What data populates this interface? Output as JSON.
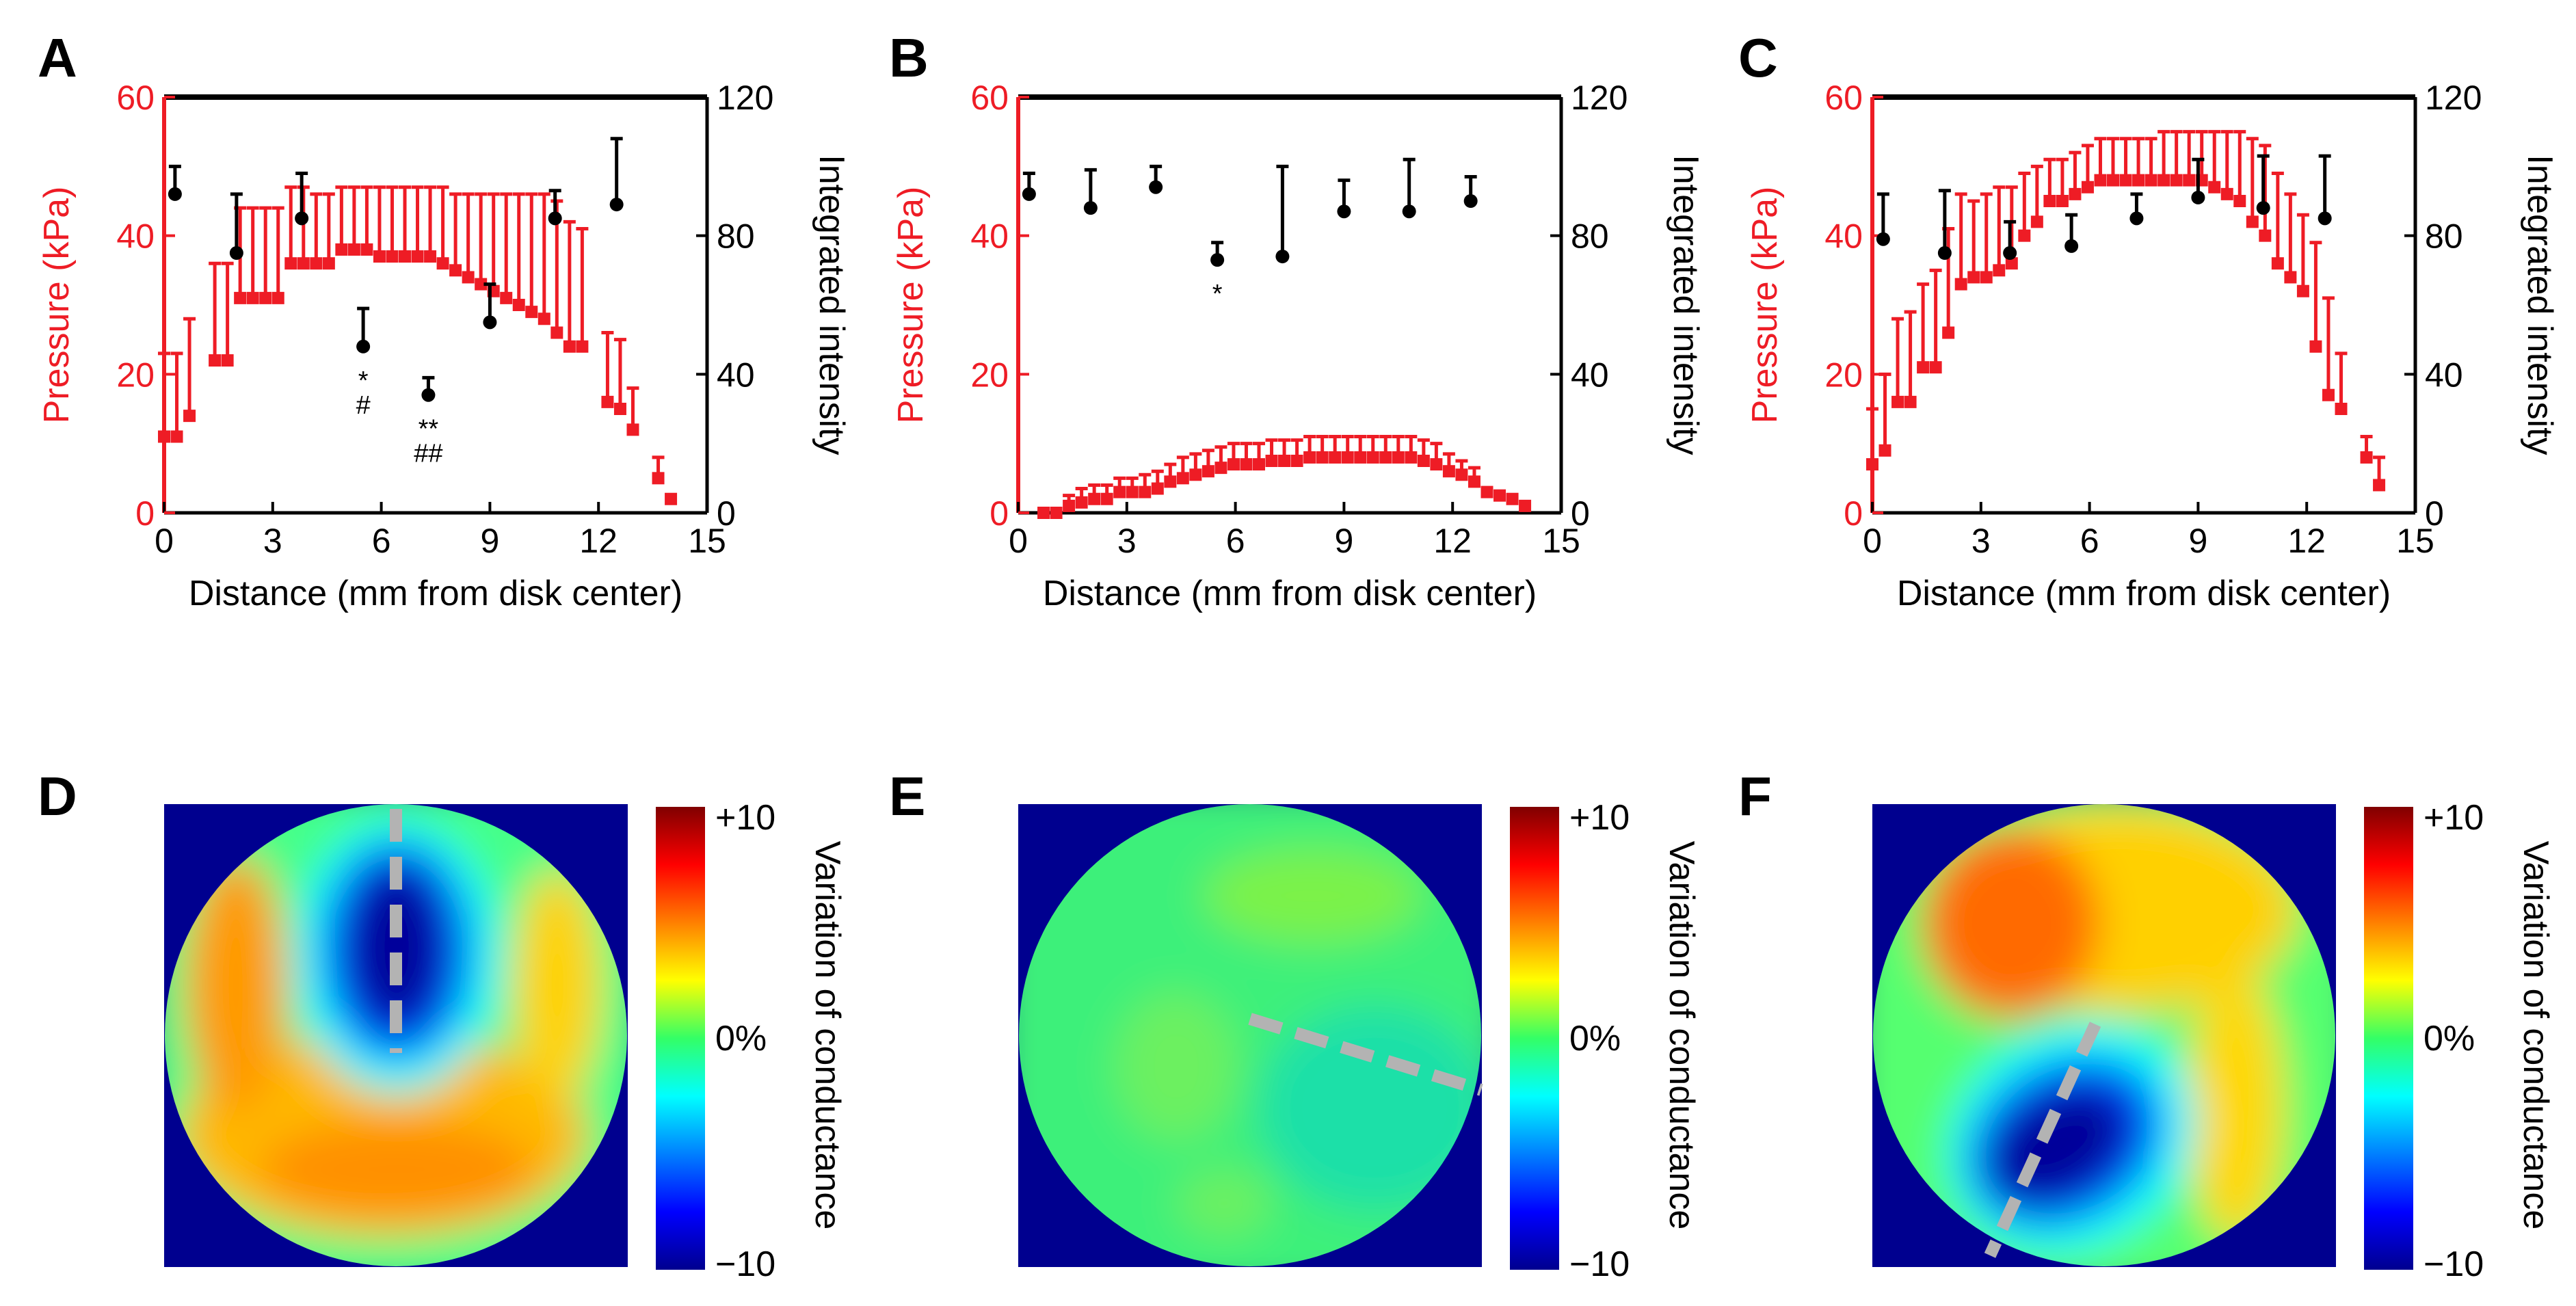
{
  "colors": {
    "pressure": "#ee1c25",
    "intensity": "#000000",
    "dash": "#b3b3b3",
    "background": "#00008f"
  },
  "chart_data": [
    {
      "panel": "A",
      "type": "line",
      "xlabel": "Distance (mm from disk center)",
      "ylabel": "Pressure (kPa)",
      "y2label": "Integrated intensity",
      "xlim": [
        0,
        15
      ],
      "ylim": [
        0,
        60
      ],
      "y2lim": [
        0,
        120
      ],
      "xticks": [
        "0",
        "3",
        "6",
        "9",
        "12",
        "15"
      ],
      "yticks": [
        "0",
        "20",
        "40",
        "60"
      ],
      "y2ticks": [
        "0",
        "40",
        "80",
        "120"
      ],
      "series": [
        {
          "name": "Pressure (kPa)",
          "axis": "left",
          "color": "#ee1c25",
          "marker": "square",
          "x": [
            0,
            0.35,
            0.7,
            1.4,
            1.75,
            2.1,
            2.45,
            2.8,
            3.15,
            3.5,
            3.85,
            4.2,
            4.55,
            4.9,
            5.25,
            5.6,
            5.95,
            6.3,
            6.65,
            7.0,
            7.35,
            7.7,
            8.05,
            8.4,
            8.75,
            9.1,
            9.45,
            9.8,
            10.15,
            10.5,
            10.85,
            11.2,
            11.55,
            12.25,
            12.6,
            12.95,
            13.65,
            14.0
          ],
          "y": [
            11,
            11,
            14,
            22,
            22,
            31,
            31,
            31,
            31,
            36,
            36,
            36,
            36,
            38,
            38,
            38,
            37,
            37,
            37,
            37,
            37,
            36,
            35,
            34,
            33,
            32,
            31,
            30,
            29,
            28,
            26,
            24,
            24,
            16,
            15,
            12,
            5,
            2
          ],
          "err": [
            12,
            12,
            14,
            14,
            14,
            13,
            13,
            13,
            13,
            11,
            11,
            10,
            10,
            9,
            9,
            9,
            10,
            10,
            10,
            10,
            10,
            11,
            11,
            12,
            13,
            14,
            15,
            16,
            17,
            18,
            19,
            18,
            17,
            10,
            10,
            6,
            3,
            0
          ]
        },
        {
          "name": "Integrated intensity",
          "axis": "right",
          "color": "#000000",
          "marker": "circle",
          "x": [
            0.3,
            2.0,
            3.8,
            5.5,
            7.3,
            9.0,
            10.8,
            12.5
          ],
          "y": [
            92,
            75,
            85,
            48,
            34,
            55,
            85,
            89
          ],
          "err": [
            8,
            17,
            13,
            11,
            5,
            11,
            8,
            19
          ]
        }
      ],
      "annotations": [
        {
          "x": 5.5,
          "line1": "*",
          "line2": "#"
        },
        {
          "x": 7.3,
          "line1": "**",
          "line2": "##"
        }
      ]
    },
    {
      "panel": "B",
      "type": "line",
      "xlabel": "Distance (mm from disk center)",
      "ylabel": "Pressure (kPa)",
      "y2label": "Integrated intensity",
      "xlim": [
        0,
        15
      ],
      "ylim": [
        0,
        60
      ],
      "y2lim": [
        0,
        120
      ],
      "xticks": [
        "0",
        "3",
        "6",
        "9",
        "12",
        "15"
      ],
      "yticks": [
        "0",
        "20",
        "40",
        "60"
      ],
      "y2ticks": [
        "0",
        "40",
        "80",
        "120"
      ],
      "series": [
        {
          "name": "Pressure (kPa)",
          "axis": "left",
          "color": "#ee1c25",
          "marker": "square",
          "x": [
            0.7,
            1.05,
            1.4,
            1.75,
            2.1,
            2.45,
            2.8,
            3.15,
            3.5,
            3.85,
            4.2,
            4.55,
            4.9,
            5.25,
            5.6,
            5.95,
            6.3,
            6.65,
            7.0,
            7.35,
            7.7,
            8.05,
            8.4,
            8.75,
            9.1,
            9.45,
            9.8,
            10.15,
            10.5,
            10.85,
            11.2,
            11.55,
            11.9,
            12.25,
            12.6,
            12.95,
            13.3,
            13.65,
            14.0
          ],
          "y": [
            0,
            0,
            1,
            1.5,
            2,
            2,
            3,
            3,
            3,
            3.5,
            4.5,
            5,
            5.5,
            6,
            6.5,
            7,
            7,
            7,
            7.5,
            7.5,
            7.5,
            8,
            8,
            8,
            8,
            8,
            8,
            8,
            8,
            8,
            7.5,
            7,
            6,
            5.5,
            4.5,
            3,
            2.5,
            2,
            1
          ],
          "err": [
            0,
            0,
            1.5,
            2,
            2,
            2,
            2,
            2,
            2.5,
            2.5,
            2.5,
            3,
            3,
            3,
            3,
            3,
            3,
            3,
            3,
            3,
            3,
            3,
            3,
            3,
            3,
            3,
            3,
            3,
            3,
            3,
            3,
            3,
            2.5,
            2,
            2,
            0,
            0,
            0,
            0
          ]
        },
        {
          "name": "Integrated intensity",
          "axis": "right",
          "color": "#000000",
          "marker": "circle",
          "x": [
            0.3,
            2.0,
            3.8,
            5.5,
            7.3,
            9.0,
            10.8,
            12.5
          ],
          "y": [
            92,
            88,
            94,
            73,
            74,
            87,
            87,
            90
          ],
          "err": [
            6,
            11,
            6,
            5,
            26,
            9,
            15,
            7
          ]
        }
      ],
      "annotations": [
        {
          "x": 5.5,
          "line1": "*",
          "line2": ""
        }
      ]
    },
    {
      "panel": "C",
      "type": "line",
      "xlabel": "Distance (mm from disk center)",
      "ylabel": "Pressure (kPa)",
      "y2label": "Integrated intensity",
      "xlim": [
        0,
        15
      ],
      "ylim": [
        0,
        60
      ],
      "y2lim": [
        0,
        120
      ],
      "xticks": [
        "0",
        "3",
        "6",
        "9",
        "12",
        "15"
      ],
      "yticks": [
        "0",
        "20",
        "40",
        "60"
      ],
      "y2ticks": [
        "0",
        "40",
        "80",
        "120"
      ],
      "series": [
        {
          "name": "Pressure (kPa)",
          "axis": "left",
          "color": "#ee1c25",
          "marker": "square",
          "x": [
            0,
            0.35,
            0.7,
            1.05,
            1.4,
            1.75,
            2.1,
            2.45,
            2.8,
            3.15,
            3.5,
            3.85,
            4.2,
            4.55,
            4.9,
            5.25,
            5.6,
            5.95,
            6.3,
            6.65,
            7.0,
            7.35,
            7.7,
            8.05,
            8.4,
            8.75,
            9.1,
            9.45,
            9.8,
            10.15,
            10.5,
            10.85,
            11.2,
            11.55,
            11.9,
            12.25,
            12.6,
            12.95,
            13.65,
            14.0
          ],
          "y": [
            7,
            9,
            16,
            16,
            21,
            21,
            26,
            33,
            34,
            34,
            35,
            36,
            40,
            42,
            45,
            45,
            46,
            47,
            48,
            48,
            48,
            48,
            48,
            48,
            48,
            48,
            48,
            47,
            46,
            45,
            42,
            40,
            36,
            34,
            32,
            24,
            17,
            15,
            8,
            4
          ],
          "err": [
            8,
            11,
            12,
            13,
            12,
            14,
            15,
            13,
            11,
            12,
            12,
            11,
            9,
            8,
            6,
            6,
            6,
            6,
            6,
            6,
            6,
            6,
            6,
            7,
            7,
            7,
            7,
            8,
            9,
            10,
            12,
            13,
            13,
            12,
            11,
            15,
            14,
            8,
            3,
            4
          ]
        },
        {
          "name": "Integrated intensity",
          "axis": "right",
          "color": "#000000",
          "marker": "circle",
          "x": [
            0.3,
            2.0,
            3.8,
            5.5,
            7.3,
            9.0,
            10.8,
            12.5
          ],
          "y": [
            79,
            75,
            75,
            77,
            85,
            91,
            88,
            85
          ],
          "err": [
            13,
            18,
            9,
            9,
            7,
            11,
            15,
            18
          ]
        }
      ],
      "annotations": []
    }
  ],
  "heatmaps": [
    {
      "panel": "D",
      "colorbar_title": "Variation of conductance",
      "cb_top": "+10",
      "cb_mid": "0%",
      "cb_bottom": "−10"
    },
    {
      "panel": "E",
      "colorbar_title": "Variation of conductance",
      "cb_top": "+10",
      "cb_mid": "0%",
      "cb_bottom": "−10"
    },
    {
      "panel": "F",
      "colorbar_title": "Variation of conductance",
      "cb_top": "+10",
      "cb_mid": "0%",
      "cb_bottom": "−10"
    }
  ]
}
